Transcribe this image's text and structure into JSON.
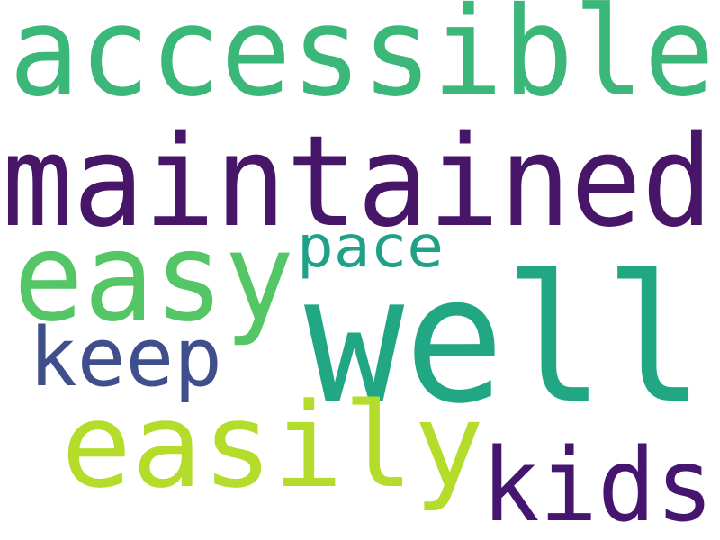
{
  "word_cloud": {
    "words": [
      {
        "text": "accessible",
        "color": "#3bb779"
      },
      {
        "text": "maintained",
        "color": "#481668"
      },
      {
        "text": "easy",
        "color": "#55c666"
      },
      {
        "text": "pace",
        "color": "#1fa187"
      },
      {
        "text": "well",
        "color": "#22a784"
      },
      {
        "text": "keep",
        "color": "#3f4f8c"
      },
      {
        "text": "easily",
        "color": "#b4dd2b"
      },
      {
        "text": "kids",
        "color": "#45156f"
      }
    ]
  }
}
